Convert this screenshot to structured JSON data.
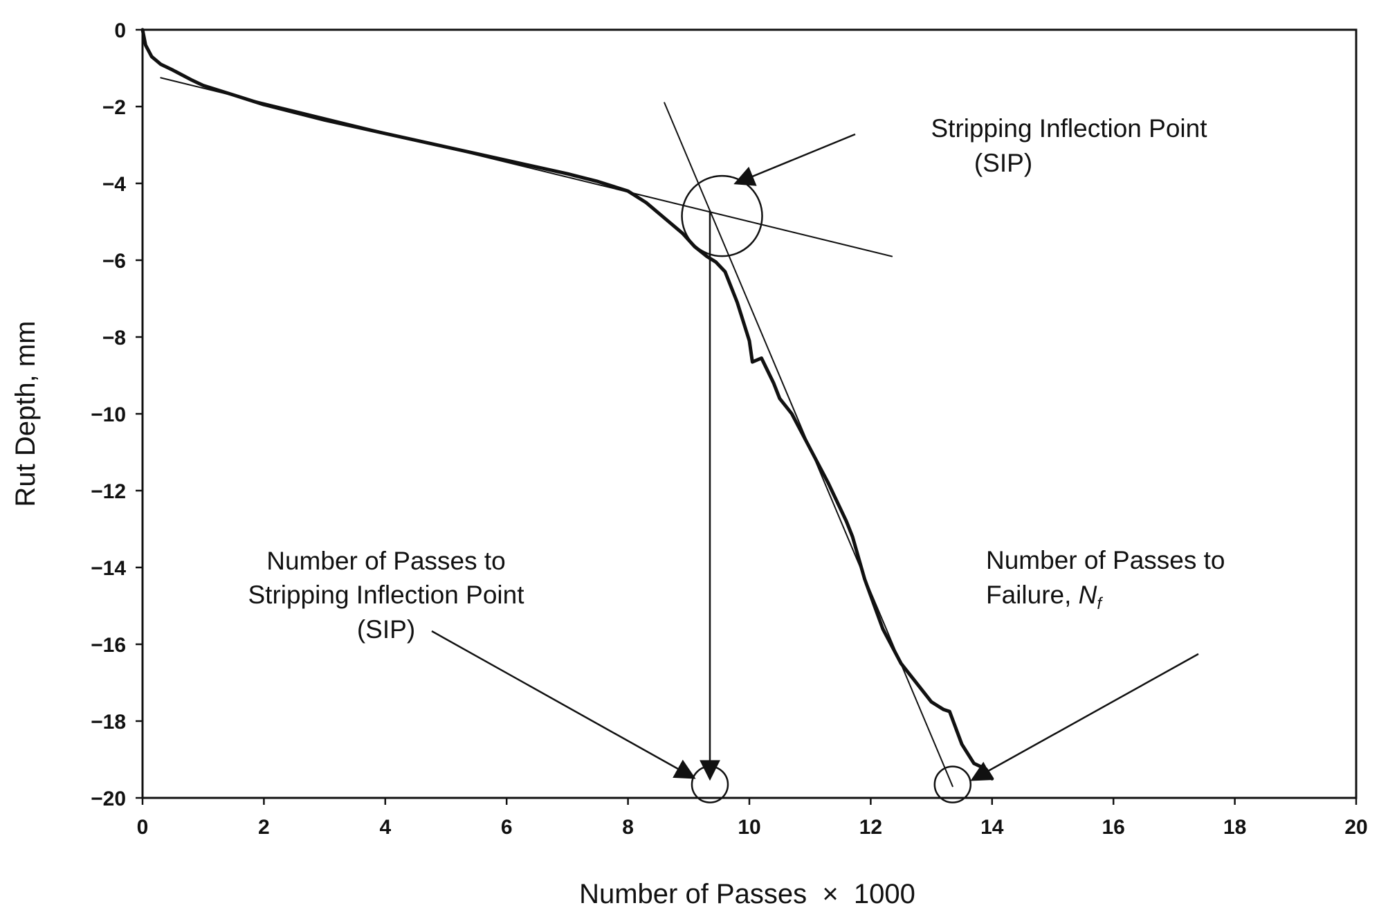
{
  "chart_data": {
    "type": "line",
    "title": "",
    "xlabel": "Number of Passes  ×  1000",
    "ylabel": "Rut Depth, mm",
    "xlim": [
      0,
      20
    ],
    "ylim": [
      -20,
      0
    ],
    "x_ticks": [
      0,
      2,
      4,
      6,
      8,
      10,
      12,
      14,
      16,
      18,
      20
    ],
    "y_ticks": [
      0,
      -2,
      -4,
      -6,
      -8,
      -10,
      -12,
      -14,
      -16,
      -18,
      -20
    ],
    "x_tick_labels": [
      "0",
      "2",
      "4",
      "6",
      "8",
      "10",
      "12",
      "14",
      "16",
      "18",
      "20"
    ],
    "y_tick_labels": [
      "0",
      "−2",
      "−4",
      "−6",
      "−8",
      "−10",
      "−12",
      "−14",
      "−16",
      "−18",
      "−20"
    ],
    "grid": false,
    "series": [
      {
        "name": "Rut depth curve",
        "x": [
          0,
          0.05,
          0.15,
          0.3,
          0.5,
          0.8,
          1.0,
          1.5,
          2.0,
          2.5,
          3.0,
          4.0,
          5.0,
          6.0,
          7.0,
          7.5,
          8.0,
          8.3,
          8.6,
          8.9,
          9.1,
          9.3,
          9.45,
          9.6,
          9.8,
          10.0,
          10.05,
          10.2,
          10.4,
          10.5,
          10.7,
          11.0,
          11.3,
          11.6,
          11.7,
          11.9,
          12.2,
          12.5,
          12.7,
          13.0,
          13.2,
          13.3,
          13.5,
          13.7,
          13.9,
          14.0
        ],
        "y": [
          0,
          -0.4,
          -0.7,
          -0.9,
          -1.05,
          -1.3,
          -1.45,
          -1.7,
          -1.95,
          -2.15,
          -2.35,
          -2.7,
          -3.05,
          -3.4,
          -3.75,
          -3.95,
          -4.2,
          -4.5,
          -4.9,
          -5.3,
          -5.65,
          -5.9,
          -6.05,
          -6.3,
          -7.1,
          -8.1,
          -8.65,
          -8.55,
          -9.2,
          -9.6,
          -10.0,
          -10.9,
          -11.8,
          -12.8,
          -13.2,
          -14.3,
          -15.6,
          -16.5,
          -16.9,
          -17.5,
          -17.7,
          -17.75,
          -18.6,
          -19.1,
          -19.25,
          -19.5
        ]
      },
      {
        "name": "Creep tangent",
        "x": [
          0.3,
          12.35
        ],
        "y": [
          -1.25,
          -5.9
        ]
      },
      {
        "name": "Stripping tangent",
        "x": [
          8.6,
          13.35
        ],
        "y": [
          -1.9,
          -19.7
        ]
      }
    ],
    "annotations": [
      {
        "lines": [
          "Stripping Inflection Point",
          "(SIP)"
        ],
        "points_to": [
          9.65,
          -3.95
        ]
      },
      {
        "lines": [
          "Number of Passes to",
          "Stripping Inflection Point",
          "(SIP)"
        ],
        "points_to": [
          9.2,
          -19.4
        ]
      },
      {
        "lines": [
          "Number of Passes to",
          "Failure,"
        ],
        "italic_suffix": "N",
        "subscript": "f",
        "points_to": [
          13.75,
          -19.35
        ]
      }
    ],
    "markers": [
      {
        "name": "SIP circle",
        "x": 9.55,
        "y": -4.85
      },
      {
        "name": "SIP passes circle",
        "x": 9.35,
        "y": -19.65
      },
      {
        "name": "failure circle",
        "x": 13.35,
        "y": -19.65
      }
    ],
    "drop_line": {
      "x": 9.35,
      "from_y": -4.7,
      "to_y": -19.5
    }
  }
}
